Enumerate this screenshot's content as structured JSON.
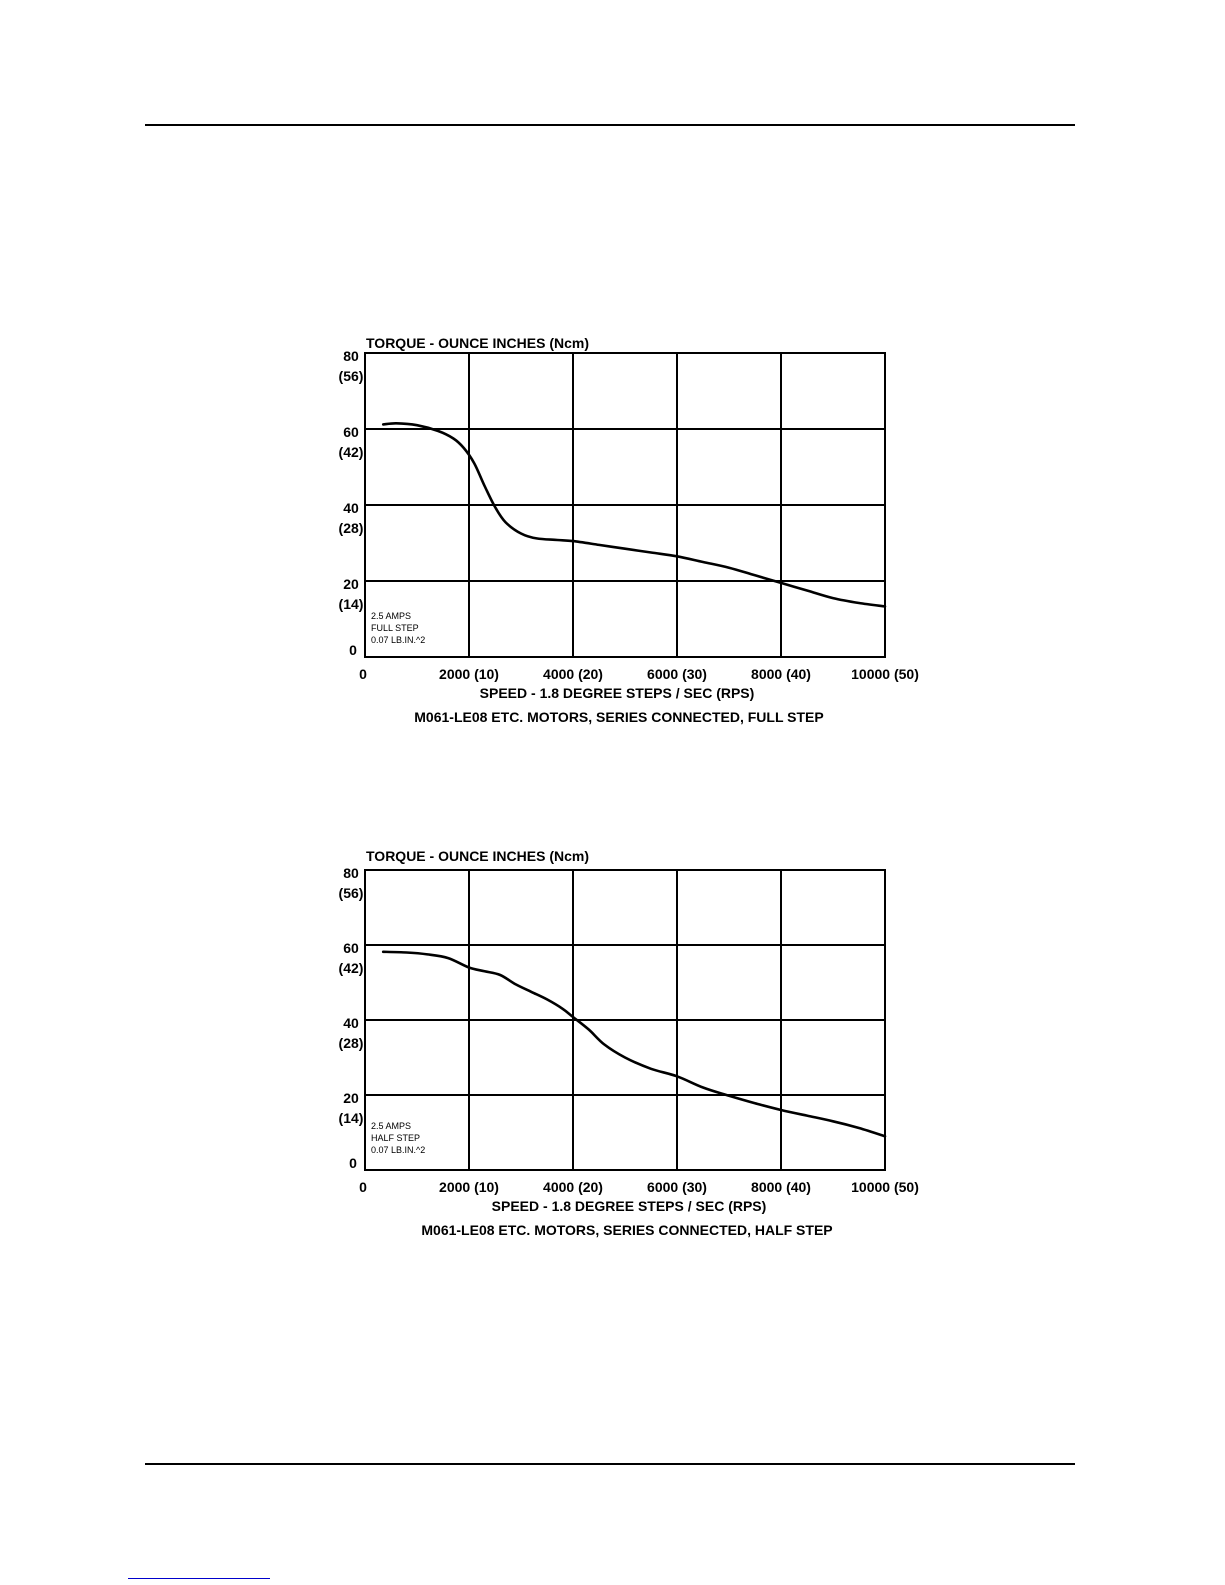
{
  "chart_data": [
    {
      "type": "line",
      "title": "TORQUE - OUNCE INCHES (Ncm)",
      "xlabel": "SPEED - 1.8 DEGREE STEPS / SEC (RPS)",
      "caption": "M061-LE08 ETC. MOTORS, SERIES CONNECTED, FULL STEP",
      "xlim": [
        0,
        10000
      ],
      "ylim": [
        0,
        80
      ],
      "grid": true,
      "x_ticks": [
        {
          "value": 0,
          "label": "0"
        },
        {
          "value": 2000,
          "label": "2000 (10)"
        },
        {
          "value": 4000,
          "label": "4000 (20)"
        },
        {
          "value": 6000,
          "label": "6000 (30)"
        },
        {
          "value": 8000,
          "label": "8000 (40)"
        },
        {
          "value": 10000,
          "label": "10000 (50)"
        }
      ],
      "y_ticks": [
        {
          "value": 0,
          "label": "0",
          "sublabel": ""
        },
        {
          "value": 20,
          "label": "20",
          "sublabel": "(14)"
        },
        {
          "value": 40,
          "label": "40",
          "sublabel": "(28)"
        },
        {
          "value": 60,
          "label": "60",
          "sublabel": "(42)"
        },
        {
          "value": 80,
          "label": "80",
          "sublabel": "(56)"
        }
      ],
      "annotation": [
        "2.5 AMPS",
        "FULL STEP",
        "0.07 LB.IN.^2"
      ],
      "series": [
        {
          "x": [
            350,
            600,
            1000,
            1400,
            1700,
            1900,
            2100,
            2300,
            2500,
            2700,
            3000,
            3300,
            3700,
            4000,
            4500,
            5000,
            5500,
            6000,
            6500,
            7000,
            7500,
            8000,
            8500,
            9000,
            9500,
            10000
          ],
          "values": [
            61.2,
            61.5,
            61,
            59.5,
            57.5,
            55,
            51,
            45,
            39.5,
            35.5,
            32.5,
            31.2,
            30.8,
            30.5,
            29.5,
            28.5,
            27.5,
            26.5,
            25,
            23.5,
            21.5,
            19.5,
            17.5,
            15.5,
            14.2,
            13.3
          ]
        }
      ]
    },
    {
      "type": "line",
      "title": "TORQUE - OUNCE INCHES (Ncm)",
      "xlabel": "SPEED - 1.8 DEGREE STEPS / SEC (RPS)",
      "caption": "M061-LE08 ETC. MOTORS, SERIES CONNECTED, HALF STEP",
      "xlim": [
        0,
        10000
      ],
      "ylim": [
        0,
        80
      ],
      "grid": true,
      "x_ticks": [
        {
          "value": 0,
          "label": "0"
        },
        {
          "value": 2000,
          "label": "2000 (10)"
        },
        {
          "value": 4000,
          "label": "4000 (20)"
        },
        {
          "value": 6000,
          "label": "6000 (30)"
        },
        {
          "value": 8000,
          "label": "8000 (40)"
        },
        {
          "value": 10000,
          "label": "10000 (50)"
        }
      ],
      "y_ticks": [
        {
          "value": 0,
          "label": "0",
          "sublabel": ""
        },
        {
          "value": 20,
          "label": "20",
          "sublabel": "(14)"
        },
        {
          "value": 40,
          "label": "40",
          "sublabel": "(28)"
        },
        {
          "value": 60,
          "label": "60",
          "sublabel": "(42)"
        },
        {
          "value": 80,
          "label": "80",
          "sublabel": "(56)"
        }
      ],
      "annotation": [
        "2.5 AMPS",
        "HALF STEP",
        "0.07 LB.IN.^2"
      ],
      "series": [
        {
          "x": [
            350,
            800,
            1200,
            1600,
            2000,
            2300,
            2600,
            2900,
            3200,
            3500,
            3800,
            4000,
            4300,
            4600,
            5000,
            5500,
            6000,
            6500,
            7000,
            7500,
            8000,
            8500,
            9000,
            9500,
            10000
          ],
          "values": [
            58.2,
            58,
            57.5,
            56.5,
            54,
            53,
            52,
            49.5,
            47.5,
            45.5,
            43,
            40.8,
            37.5,
            33.5,
            30,
            27,
            25,
            22,
            19.8,
            17.8,
            16,
            14.5,
            13,
            11.2,
            9
          ]
        }
      ]
    }
  ]
}
